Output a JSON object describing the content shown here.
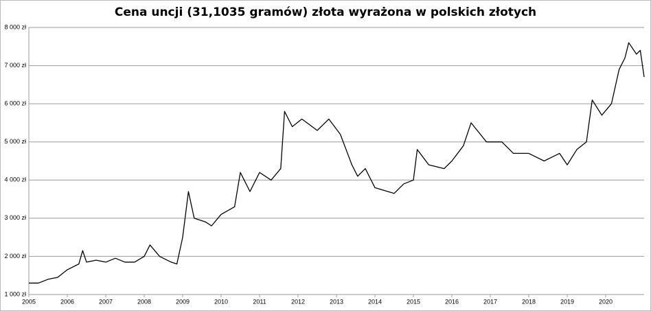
{
  "chart_data": {
    "type": "line",
    "title": "Cena uncji (31,1035 gramów) złota wyrażona w polskich złotych",
    "x": [
      2005.0,
      2005.25,
      2005.5,
      2005.75,
      2006.0,
      2006.3,
      2006.4,
      2006.5,
      2006.75,
      2007.0,
      2007.25,
      2007.5,
      2007.75,
      2008.0,
      2008.15,
      2008.4,
      2008.7,
      2008.85,
      2009.0,
      2009.15,
      2009.3,
      2009.6,
      2009.75,
      2010.0,
      2010.35,
      2010.5,
      2010.75,
      2011.0,
      2011.3,
      2011.55,
      2011.65,
      2011.85,
      2012.1,
      2012.5,
      2012.8,
      2013.1,
      2013.4,
      2013.55,
      2013.75,
      2014.0,
      2014.5,
      2014.75,
      2015.0,
      2015.1,
      2015.4,
      2015.8,
      2016.0,
      2016.3,
      2016.5,
      2016.9,
      2017.3,
      2017.6,
      2018.0,
      2018.4,
      2018.6,
      2018.8,
      2019.0,
      2019.25,
      2019.5,
      2019.65,
      2019.9,
      2020.15,
      2020.35,
      2020.5,
      2020.6,
      2020.8,
      2020.9,
      2021.0
    ],
    "values": [
      1300,
      1300,
      1400,
      1450,
      1650,
      1800,
      2150,
      1850,
      1900,
      1850,
      1950,
      1850,
      1850,
      2000,
      2300,
      2000,
      1850,
      1800,
      2500,
      3700,
      3000,
      2900,
      2800,
      3100,
      3300,
      4200,
      3700,
      4200,
      4000,
      4300,
      5800,
      5400,
      5600,
      5300,
      5600,
      5200,
      4400,
      4100,
      4300,
      3800,
      3650,
      3900,
      4000,
      4800,
      4400,
      4300,
      4500,
      4900,
      5500,
      5000,
      5000,
      4700,
      4700,
      4500,
      4600,
      4700,
      4400,
      4800,
      5000,
      6100,
      5700,
      6000,
      6900,
      7200,
      7600,
      7300,
      7400,
      6700
    ],
    "color": "#000000",
    "xlim": [
      2005,
      2021
    ],
    "xticks": [
      2005,
      2006,
      2007,
      2008,
      2009,
      2010,
      2011,
      2012,
      2013,
      2014,
      2015,
      2016,
      2017,
      2018,
      2019,
      2020
    ],
    "ylim": [
      1000,
      8000
    ],
    "yticks": [
      {
        "value": 1000,
        "label": "1 000 zł"
      },
      {
        "value": 2000,
        "label": "2 000 zł"
      },
      {
        "value": 3000,
        "label": "3 000 zł"
      },
      {
        "value": 4000,
        "label": "4 000 zł"
      },
      {
        "value": 5000,
        "label": "5 000 zł"
      },
      {
        "value": 6000,
        "label": "6 000 zł"
      },
      {
        "value": 7000,
        "label": "7 000 zł"
      },
      {
        "value": 8000,
        "label": "8 000 zł"
      }
    ],
    "grid": true
  }
}
